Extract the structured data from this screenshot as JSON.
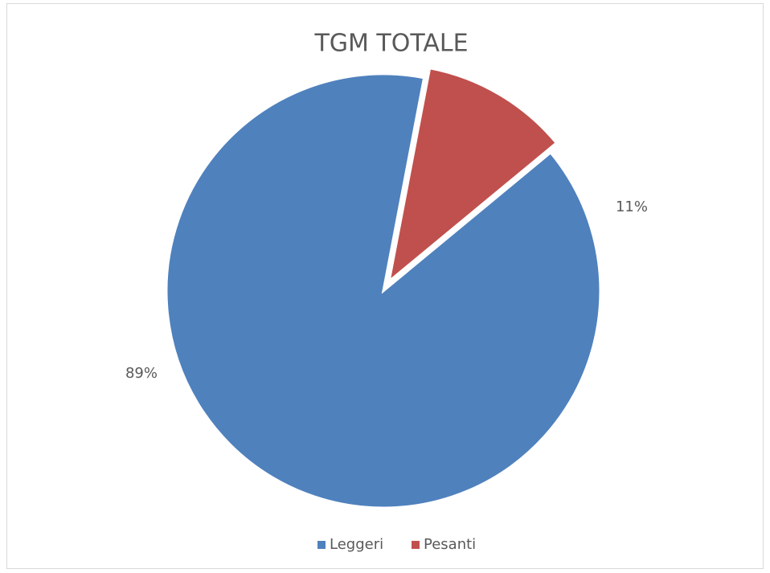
{
  "chart_data": {
    "type": "pie",
    "title": "TGM TOTALE",
    "categories": [
      "Leggeri",
      "Pesanti"
    ],
    "values": [
      89,
      11
    ],
    "value_labels": [
      "89%",
      "11%"
    ],
    "colors": [
      "#4f81bd",
      "#c0504d"
    ],
    "legend": "bottom"
  }
}
